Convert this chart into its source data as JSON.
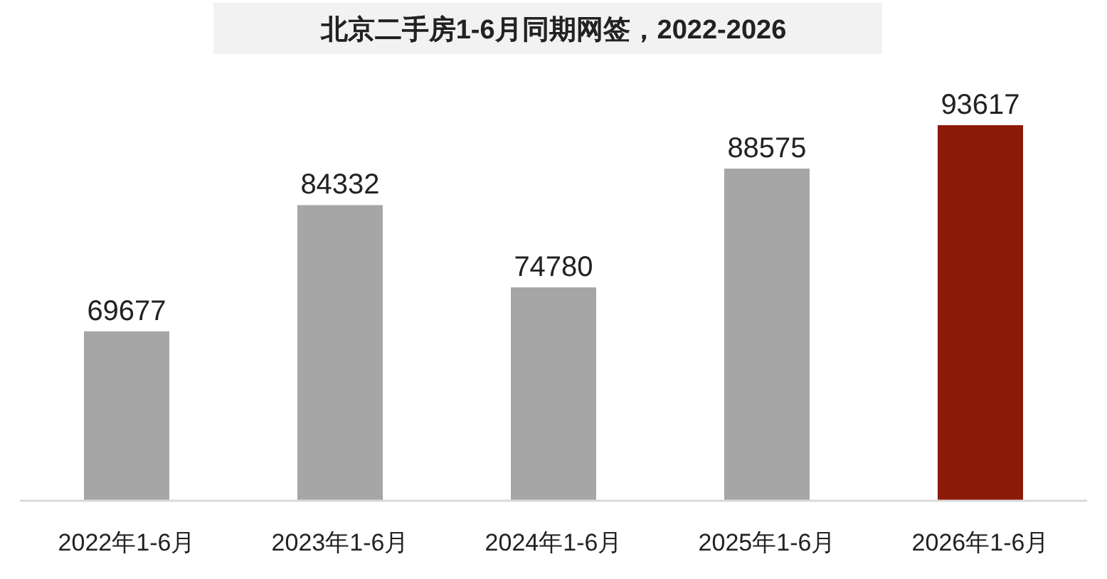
{
  "chart_data": {
    "type": "bar",
    "title": "北京二手房1-6月同期网签，2022-2026",
    "categories": [
      "2022年1-6月",
      "2023年1-6月",
      "2024年1-6月",
      "2025年1-6月",
      "2026年1-6月"
    ],
    "values": [
      69677,
      84332,
      74780,
      88575,
      93617
    ],
    "colors": [
      "#a6a6a6",
      "#a6a6a6",
      "#a6a6a6",
      "#a6a6a6",
      "#8b1a08"
    ],
    "ylim": [
      50000,
      93617
    ],
    "tick_labels": "x",
    "data_labels": true,
    "grid": false
  }
}
